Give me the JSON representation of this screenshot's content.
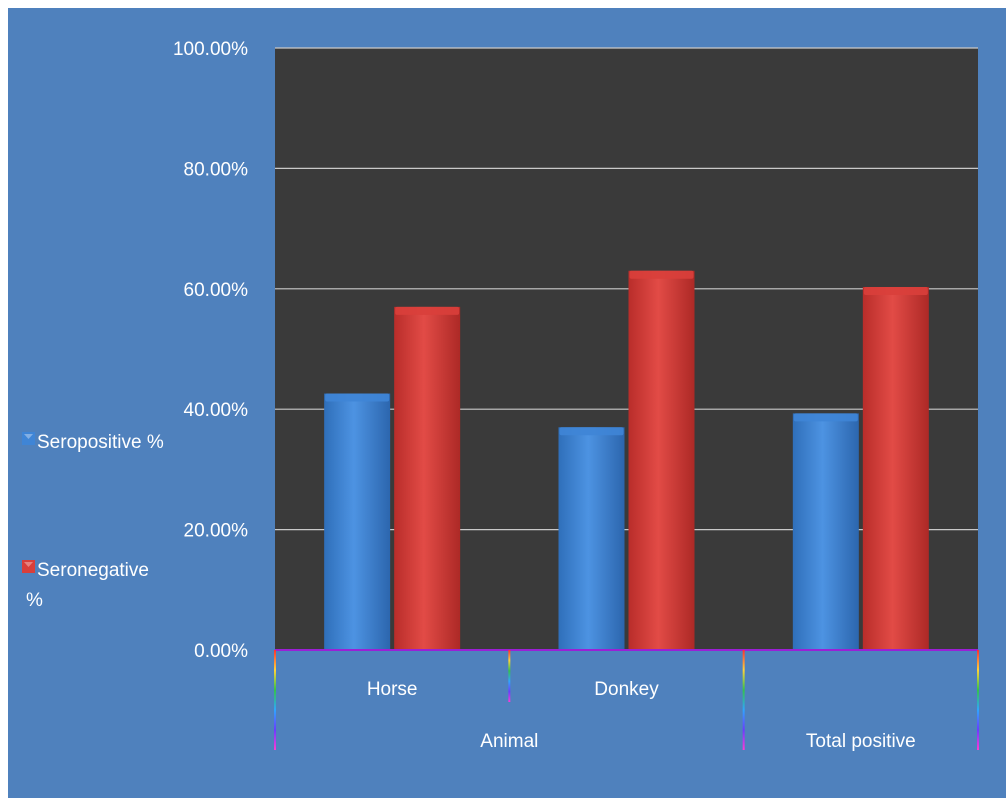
{
  "colors": {
    "frame_background": "#4f81bd",
    "plot_background": "#3a3a3a",
    "gridline": "#c9c9c9",
    "axis_line": "#9b1fd6",
    "text": "#ffffff",
    "seropositive": "#3f85d6",
    "seronegative": "#d93f3b"
  },
  "legend": {
    "placement": "left",
    "items": [
      {
        "label_lines": [
          "Seropositive %"
        ],
        "color_key": "seropositive"
      },
      {
        "label_lines": [
          "Seronegative",
          "%"
        ],
        "color_key": "seronegative"
      }
    ]
  },
  "chart_data": {
    "type": "bar",
    "title": "",
    "xlabel": "",
    "ylabel": "",
    "categories": [
      "Horse",
      "Donkey",
      ""
    ],
    "category_groups": [
      {
        "label": "Animal",
        "span": 2
      },
      {
        "label": "Total positive",
        "span": 1
      }
    ],
    "series": [
      {
        "name": "Seropositive %",
        "values": [
          42.6,
          37.0,
          39.3
        ]
      },
      {
        "name": "Seronegative %",
        "values": [
          57.0,
          63.0,
          60.3
        ]
      }
    ],
    "ylim": [
      0,
      100
    ],
    "yticks": [
      0,
      20,
      40,
      60,
      80,
      100
    ],
    "ytick_labels": [
      "0.00%",
      "20.00%",
      "40.00%",
      "60.00%",
      "80.00%",
      "100.00%"
    ],
    "grid": true
  }
}
